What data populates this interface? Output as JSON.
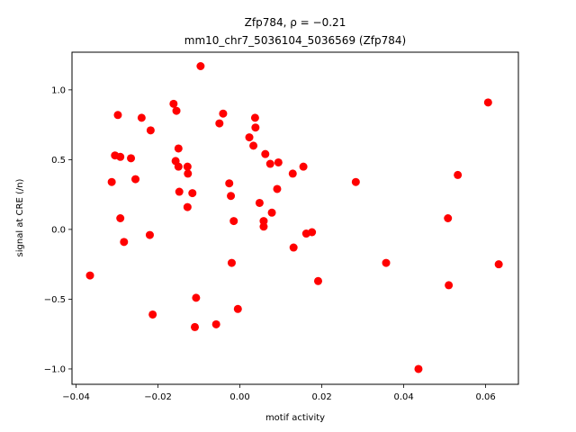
{
  "chart_data": {
    "type": "scatter",
    "title_line1": "Zfp784, ρ = −0.21",
    "title_line2": "mm10_chr7_5036104_5036569 (Zfp784)",
    "xlabel": "motif activity",
    "ylabel": "signal at CRE (/n)",
    "xlim": [
      -0.041,
      0.068
    ],
    "ylim": [
      -1.11,
      1.27
    ],
    "xticks": [
      -0.04,
      -0.02,
      0.0,
      0.02,
      0.04,
      0.06
    ],
    "xtick_labels": [
      "−0.04",
      "−0.02",
      "0.00",
      "0.02",
      "0.04",
      "0.06"
    ],
    "yticks": [
      -1.0,
      -0.5,
      0.0,
      0.5,
      1.0
    ],
    "ytick_labels": [
      "−1.0",
      "−0.5",
      "0.0",
      "0.5",
      "1.0"
    ],
    "marker_color": "#ff0000",
    "grid": false,
    "points": [
      {
        "x": -0.0366,
        "y": -0.33
      },
      {
        "x": -0.0313,
        "y": 0.34
      },
      {
        "x": -0.0305,
        "y": 0.53
      },
      {
        "x": -0.0298,
        "y": 0.82
      },
      {
        "x": -0.0292,
        "y": 0.52
      },
      {
        "x": -0.0292,
        "y": 0.08
      },
      {
        "x": -0.0283,
        "y": -0.09
      },
      {
        "x": -0.0266,
        "y": 0.51
      },
      {
        "x": -0.0255,
        "y": 0.36
      },
      {
        "x": -0.024,
        "y": 0.8
      },
      {
        "x": -0.022,
        "y": -0.04
      },
      {
        "x": -0.0218,
        "y": 0.71
      },
      {
        "x": -0.0213,
        "y": -0.61
      },
      {
        "x": -0.0162,
        "y": 0.9
      },
      {
        "x": -0.0157,
        "y": 0.49
      },
      {
        "x": -0.0155,
        "y": 0.85
      },
      {
        "x": -0.015,
        "y": 0.58
      },
      {
        "x": -0.015,
        "y": 0.45
      },
      {
        "x": -0.0148,
        "y": 0.27
      },
      {
        "x": -0.0128,
        "y": 0.45
      },
      {
        "x": -0.0127,
        "y": 0.4
      },
      {
        "x": -0.0128,
        "y": 0.16
      },
      {
        "x": -0.0116,
        "y": 0.26
      },
      {
        "x": -0.011,
        "y": -0.7
      },
      {
        "x": -0.0107,
        "y": -0.49
      },
      {
        "x": -0.0096,
        "y": 1.17
      },
      {
        "x": -0.0058,
        "y": -0.68
      },
      {
        "x": -0.005,
        "y": 0.76
      },
      {
        "x": -0.0041,
        "y": 0.83
      },
      {
        "x": -0.0026,
        "y": 0.33
      },
      {
        "x": -0.0022,
        "y": 0.24
      },
      {
        "x": -0.002,
        "y": -0.24
      },
      {
        "x": -0.0015,
        "y": 0.06
      },
      {
        "x": -0.0005,
        "y": -0.57
      },
      {
        "x": 0.0023,
        "y": 0.66
      },
      {
        "x": 0.0033,
        "y": 0.6
      },
      {
        "x": 0.0037,
        "y": 0.8
      },
      {
        "x": 0.0038,
        "y": 0.73
      },
      {
        "x": 0.0048,
        "y": 0.19
      },
      {
        "x": 0.0058,
        "y": 0.06
      },
      {
        "x": 0.0058,
        "y": 0.02
      },
      {
        "x": 0.0062,
        "y": 0.54
      },
      {
        "x": 0.0074,
        "y": 0.47
      },
      {
        "x": 0.0078,
        "y": 0.12
      },
      {
        "x": 0.0091,
        "y": 0.29
      },
      {
        "x": 0.0094,
        "y": 0.48
      },
      {
        "x": 0.0129,
        "y": 0.4
      },
      {
        "x": 0.0131,
        "y": -0.13
      },
      {
        "x": 0.0155,
        "y": 0.45
      },
      {
        "x": 0.0162,
        "y": -0.03
      },
      {
        "x": 0.0176,
        "y": -0.02
      },
      {
        "x": 0.0191,
        "y": -0.37
      },
      {
        "x": 0.0283,
        "y": 0.34
      },
      {
        "x": 0.0357,
        "y": -0.24
      },
      {
        "x": 0.0436,
        "y": -1.0
      },
      {
        "x": 0.0508,
        "y": 0.08
      },
      {
        "x": 0.051,
        "y": -0.4
      },
      {
        "x": 0.0532,
        "y": 0.39
      },
      {
        "x": 0.0606,
        "y": 0.91
      },
      {
        "x": 0.0632,
        "y": -0.25
      }
    ]
  }
}
